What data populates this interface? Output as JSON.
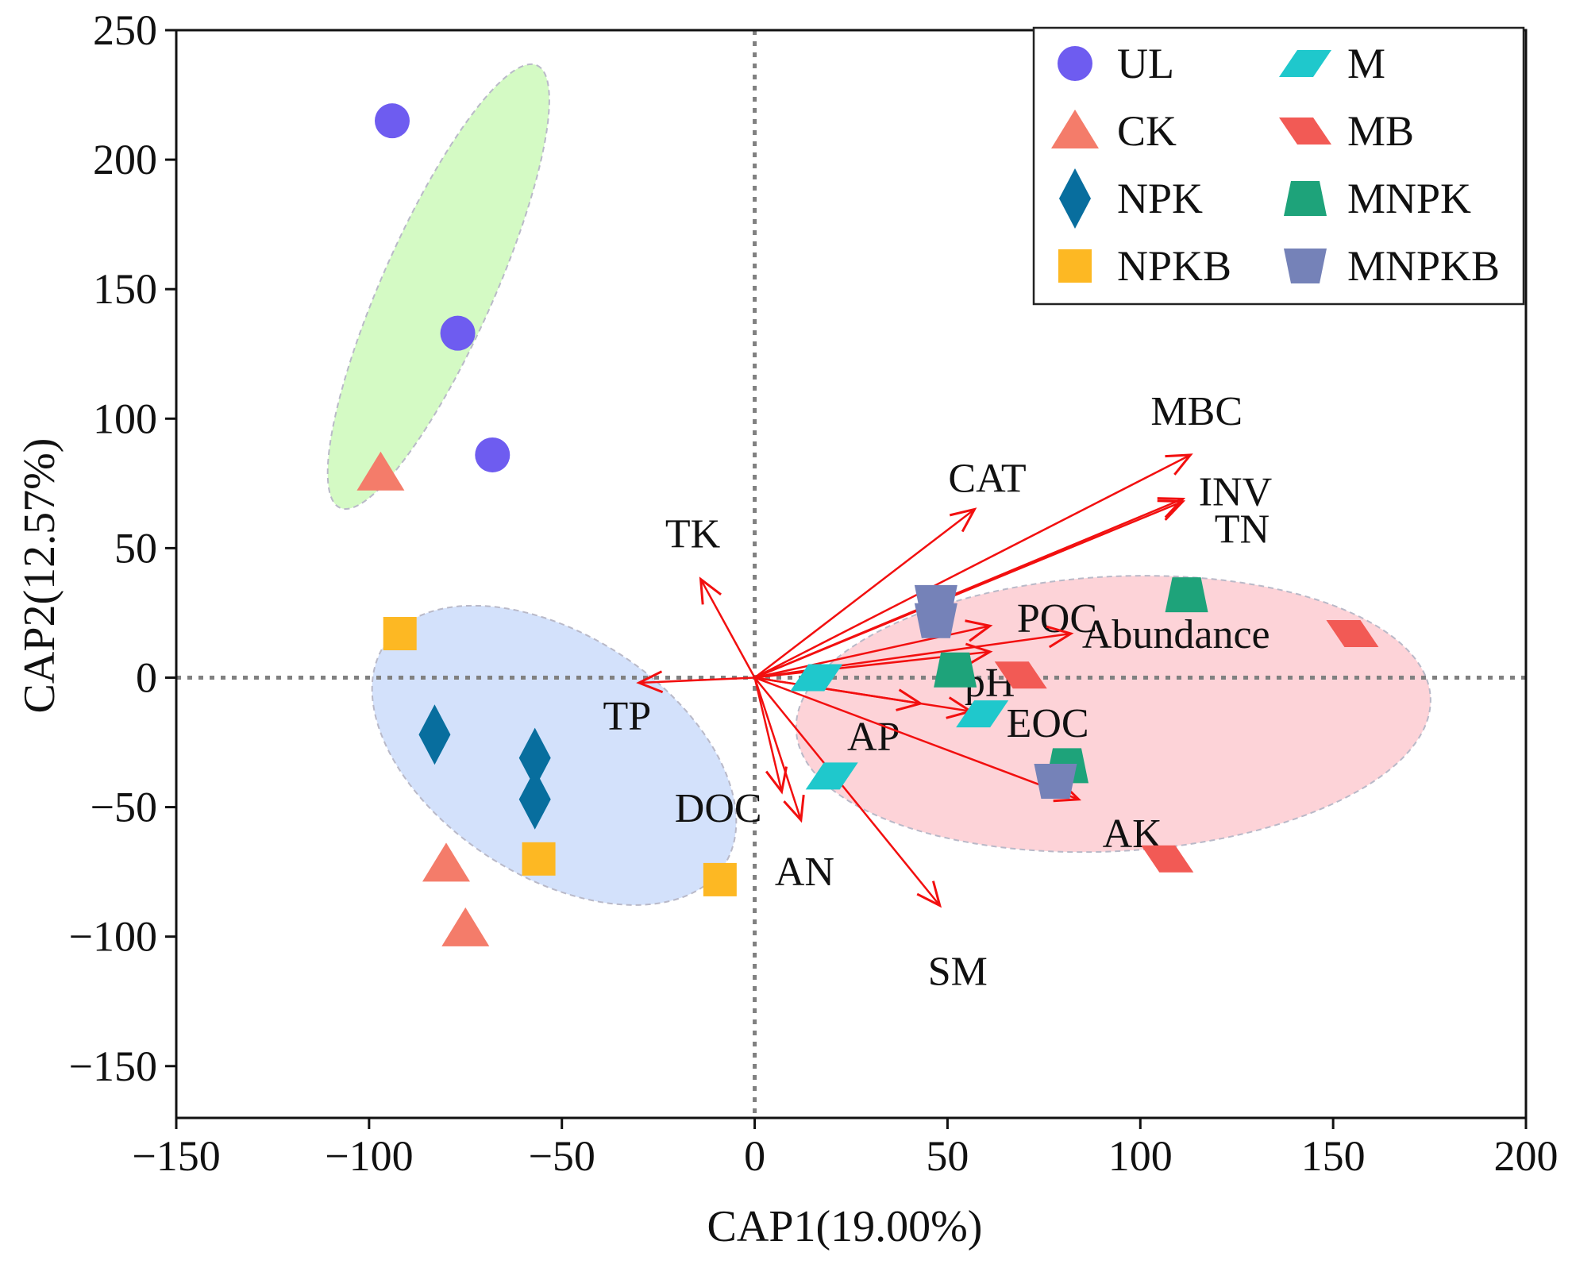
{
  "chart_data": {
    "type": "scatter",
    "xlabel": "CAP1(19.00%)",
    "ylabel": "CAP2(12.57%)",
    "xlim": [
      -150,
      200
    ],
    "ylim": [
      -170,
      250
    ],
    "x_ticks": [
      -150,
      -100,
      -50,
      0,
      50,
      100,
      150,
      200
    ],
    "y_ticks": [
      -150,
      -100,
      -50,
      0,
      50,
      100,
      150,
      200,
      250
    ],
    "x_tick_labels": [
      "−150",
      "−100",
      "−50",
      "0",
      "50",
      "100",
      "150",
      "200"
    ],
    "y_tick_labels": [
      "−150",
      "−100",
      "−50",
      "0",
      "50",
      "100",
      "150",
      "200",
      "250"
    ],
    "grid": false,
    "reference_lines": {
      "x": 0,
      "y": 0,
      "style": "dotted",
      "color": "#808080"
    },
    "legend": {
      "placement": "top-right",
      "columns": 2
    },
    "series": [
      {
        "name": "UL",
        "marker": "circle",
        "color": "#6E5CF0",
        "points": [
          [
            -94,
            215
          ],
          [
            -77,
            133
          ],
          [
            -68,
            86
          ]
        ]
      },
      {
        "name": "CK",
        "marker": "triangle",
        "color": "#F47C6A",
        "points": [
          [
            -97,
            79
          ],
          [
            -80,
            -72
          ],
          [
            -75,
            -97
          ]
        ]
      },
      {
        "name": "NPK",
        "marker": "diamond",
        "color": "#086E9E",
        "points": [
          [
            -83,
            -22
          ],
          [
            -57,
            -31
          ],
          [
            -57,
            -47
          ]
        ]
      },
      {
        "name": "NPKB",
        "marker": "square",
        "color": "#FDB823",
        "points": [
          [
            -92,
            17
          ],
          [
            -56,
            -70
          ],
          [
            -9,
            -78
          ]
        ]
      },
      {
        "name": "M",
        "marker": "parallelogram",
        "color": "#1FC8CC",
        "points": [
          [
            16,
            0
          ],
          [
            59,
            -14
          ],
          [
            20,
            -38
          ]
        ]
      },
      {
        "name": "MB",
        "marker": "parallelogram-flipped",
        "color": "#F25A55",
        "points": [
          [
            155,
            17
          ],
          [
            107,
            -70
          ],
          [
            69,
            1
          ]
        ]
      },
      {
        "name": "MNPK",
        "marker": "trapezoid",
        "color": "#1EA37A",
        "points": [
          [
            112,
            32
          ],
          [
            52,
            3
          ],
          [
            81,
            -34
          ]
        ]
      },
      {
        "name": "MNPKB",
        "marker": "inverted-trapezoid",
        "color": "#7582B8",
        "points": [
          [
            47,
            29
          ],
          [
            47,
            22
          ],
          [
            78,
            -40
          ]
        ]
      }
    ],
    "vectors_color": "#F20F0F",
    "vectors": [
      {
        "label": "MBC",
        "end": [
          113,
          86
        ]
      },
      {
        "label": "INV",
        "end": [
          111,
          69
        ]
      },
      {
        "label": "TN",
        "end": [
          111,
          68
        ]
      },
      {
        "label": "CAT",
        "end": [
          57,
          65
        ]
      },
      {
        "label": "TK",
        "end": [
          -14,
          38
        ]
      },
      {
        "label": "POC",
        "end": [
          61,
          20
        ]
      },
      {
        "label": "Abundance",
        "end": [
          82,
          17
        ]
      },
      {
        "label": "pH",
        "end": [
          61,
          10
        ]
      },
      {
        "label": "TP",
        "end": [
          -30,
          -2
        ]
      },
      {
        "label": "EOC",
        "end": [
          56,
          -13
        ]
      },
      {
        "label": "AP",
        "end": [
          43,
          -10
        ]
      },
      {
        "label": "AK",
        "end": [
          84,
          -47
        ]
      },
      {
        "label": "DOC",
        "end": [
          7,
          -44
        ]
      },
      {
        "label": "AN",
        "end": [
          12,
          -55
        ]
      },
      {
        "label": "SM",
        "end": [
          48,
          -88
        ]
      }
    ],
    "ellipses": [
      {
        "group": "UL",
        "fill": "#D4FAC4",
        "center": [
          -82,
          151
        ],
        "x_radius": 56,
        "y_radius": 15
      },
      {
        "group": "NPK/NPKB",
        "fill": "#D3E1FB",
        "center": [
          -52,
          -30
        ],
        "x_radius": 41,
        "y_radius": 30
      },
      {
        "group": "M/MB/MNPK/MNPKB",
        "fill": "#FDD3D8",
        "center": [
          93,
          -14
        ],
        "x_radius": 81,
        "y_radius": 83
      }
    ]
  }
}
